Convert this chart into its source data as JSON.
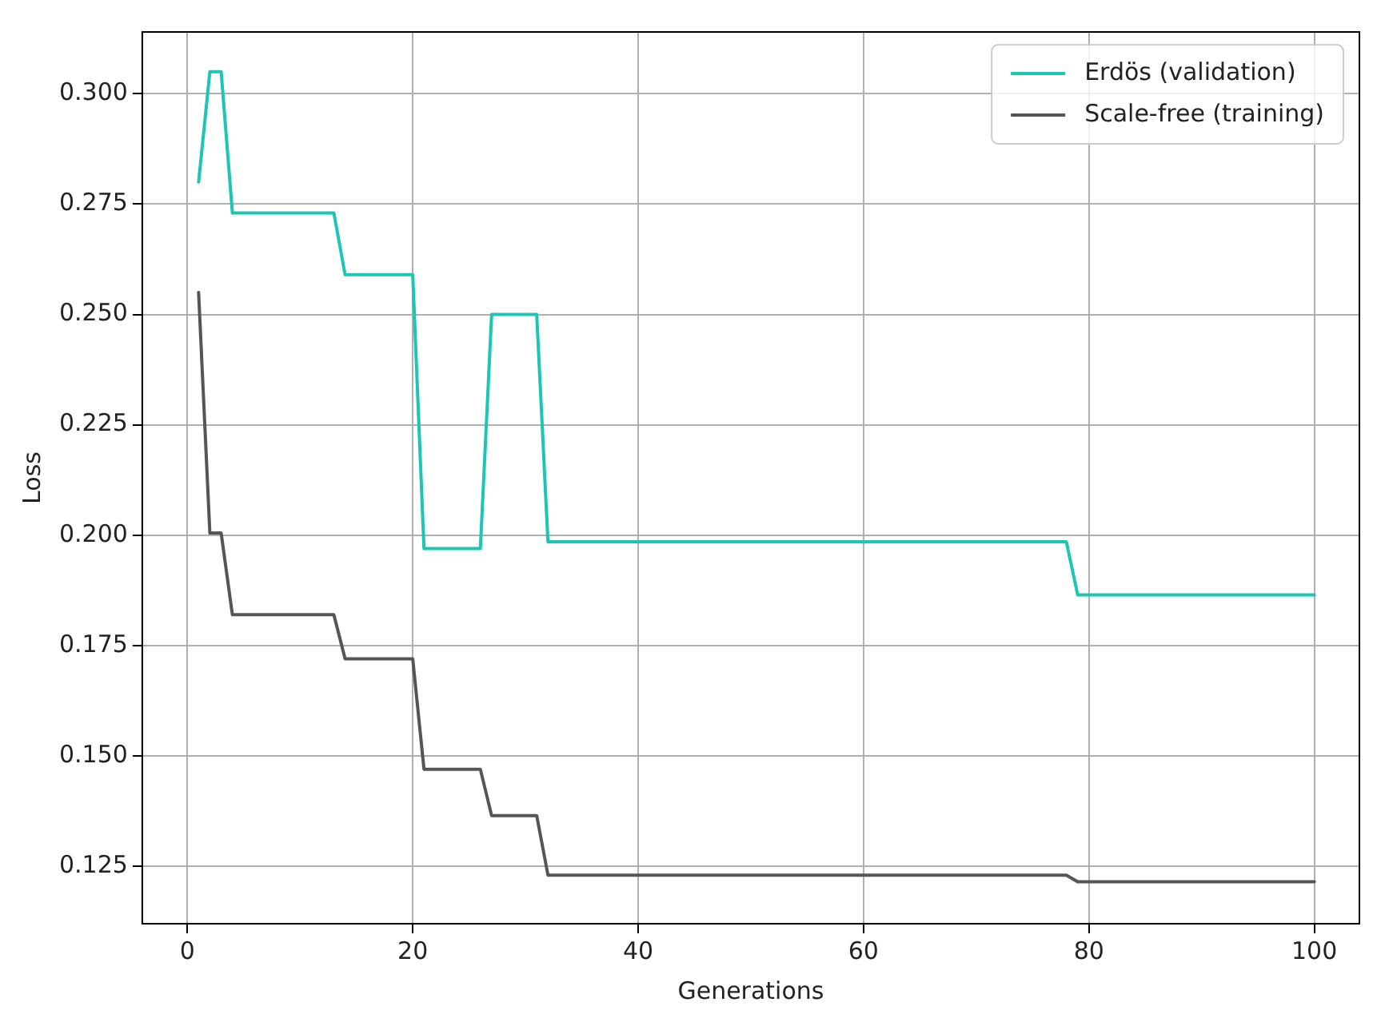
{
  "chart_data": {
    "type": "line",
    "xlabel": "Generations",
    "ylabel": "Loss",
    "xlim": [
      -4,
      104
    ],
    "ylim": [
      0.112,
      0.314
    ],
    "xticks": [
      0,
      20,
      40,
      60,
      80,
      100
    ],
    "yticks": [
      {
        "value": 0.125,
        "label": "0.125"
      },
      {
        "value": 0.15,
        "label": "0.150"
      },
      {
        "value": 0.175,
        "label": "0.175"
      },
      {
        "value": 0.2,
        "label": "0.200"
      },
      {
        "value": 0.225,
        "label": "0.225"
      },
      {
        "value": 0.25,
        "label": "0.250"
      },
      {
        "value": 0.275,
        "label": "0.275"
      },
      {
        "value": 0.3,
        "label": "0.300"
      }
    ],
    "grid": true,
    "legend": "top right",
    "marker": "none",
    "line_style": "solid",
    "series": [
      {
        "name": "Erdös (validation)",
        "color": "#1cc6b0",
        "x": [
          1,
          2,
          3,
          4,
          13,
          14,
          20,
          21,
          26,
          27,
          31,
          32,
          78,
          79,
          100
        ],
        "values": [
          0.28,
          0.305,
          0.305,
          0.273,
          0.273,
          0.259,
          0.259,
          0.197,
          0.197,
          0.25,
          0.25,
          0.1985,
          0.1985,
          0.1865,
          0.1865
        ]
      },
      {
        "name": "Scale-free (training)",
        "color": "#555555",
        "x": [
          1,
          2,
          3,
          4,
          13,
          14,
          20,
          21,
          26,
          27,
          31,
          32,
          78,
          79,
          100
        ],
        "values": [
          0.255,
          0.2005,
          0.2005,
          0.182,
          0.182,
          0.172,
          0.172,
          0.147,
          0.147,
          0.1365,
          0.1365,
          0.123,
          0.123,
          0.1215,
          0.1215
        ]
      }
    ]
  }
}
